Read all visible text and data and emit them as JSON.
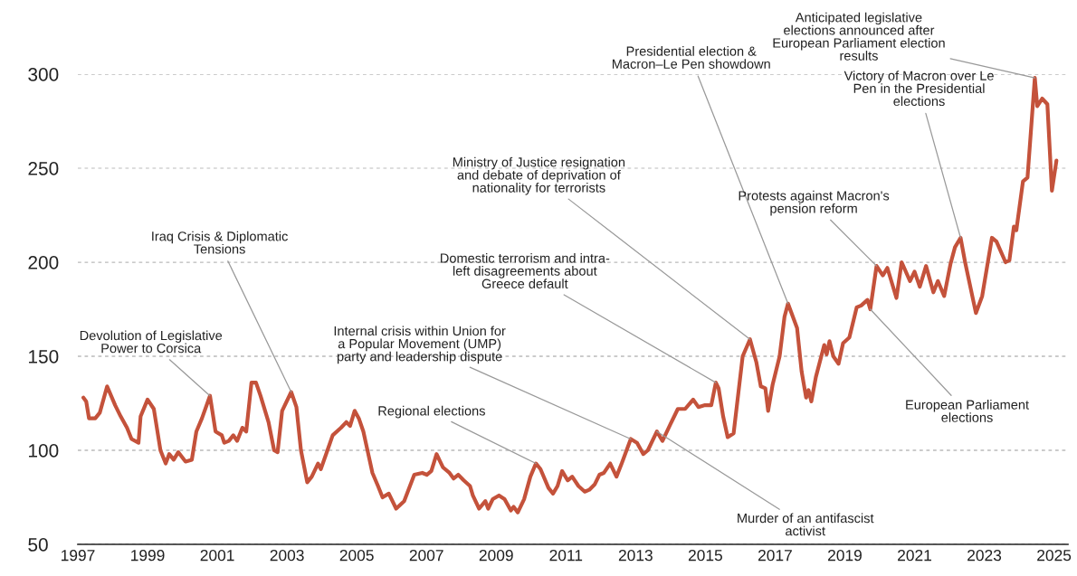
{
  "chart_data": {
    "type": "line",
    "x": [
      1997.16,
      1997.24,
      1997.32,
      1997.5,
      1997.63,
      1997.84,
      1998.07,
      1998.23,
      1998.41,
      1998.54,
      1998.74,
      1998.8,
      1999.0,
      1999.18,
      1999.37,
      1999.52,
      1999.62,
      1999.75,
      1999.88,
      2000.09,
      2000.27,
      2000.4,
      2000.56,
      2000.79,
      2000.95,
      2001.13,
      2001.2,
      2001.33,
      2001.46,
      2001.57,
      2001.72,
      2001.83,
      2001.98,
      2002.11,
      2002.24,
      2002.47,
      2002.63,
      2002.73,
      2002.86,
      2003.12,
      2003.27,
      2003.4,
      2003.58,
      2003.71,
      2003.89,
      2003.97,
      2004.16,
      2004.31,
      2004.55,
      2004.7,
      2004.81,
      2004.94,
      2005.06,
      2005.19,
      2005.32,
      2005.45,
      2005.61,
      2005.74,
      2005.92,
      2006.13,
      2006.36,
      2006.65,
      2006.88,
      2007.01,
      2007.14,
      2007.29,
      2007.47,
      2007.66,
      2007.78,
      2007.91,
      2008.07,
      2008.25,
      2008.33,
      2008.51,
      2008.69,
      2008.77,
      2008.9,
      2009.08,
      2009.24,
      2009.42,
      2009.5,
      2009.62,
      2009.8,
      2009.98,
      2010.14,
      2010.27,
      2010.5,
      2010.63,
      2010.76,
      2010.89,
      2011.05,
      2011.18,
      2011.36,
      2011.54,
      2011.67,
      2011.83,
      2011.96,
      2012.09,
      2012.27,
      2012.45,
      2012.6,
      2012.86,
      2013.04,
      2013.22,
      2013.35,
      2013.61,
      2013.77,
      2014.0,
      2014.21,
      2014.42,
      2014.65,
      2014.8,
      2014.99,
      2015.17,
      2015.3,
      2015.38,
      2015.51,
      2015.64,
      2015.81,
      2016.07,
      2016.28,
      2016.46,
      2016.59,
      2016.72,
      2016.8,
      2016.93,
      2017.13,
      2017.27,
      2017.37,
      2017.63,
      2017.76,
      2017.89,
      2017.96,
      2018.04,
      2018.17,
      2018.41,
      2018.48,
      2018.56,
      2018.67,
      2018.82,
      2018.95,
      2019.13,
      2019.34,
      2019.47,
      2019.65,
      2019.73,
      2019.91,
      2020.09,
      2020.22,
      2020.48,
      2020.63,
      2020.87,
      2021.0,
      2021.15,
      2021.33,
      2021.54,
      2021.67,
      2021.85,
      2022.03,
      2022.16,
      2022.32,
      2022.45,
      2022.76,
      2022.94,
      2023.22,
      2023.35,
      2023.61,
      2023.72,
      2023.85,
      2023.92,
      2024.11,
      2024.24,
      2024.45,
      2024.52,
      2024.66,
      2024.81,
      2024.94,
      2025.07
    ],
    "series": [
      {
        "color": "#c4523b",
        "values": [
          128,
          126,
          117,
          117,
          120,
          134,
          124,
          118,
          112,
          106,
          104,
          118,
          127,
          122,
          100,
          93,
          98,
          95,
          99,
          94,
          95,
          110,
          117,
          129,
          110,
          108,
          104,
          105,
          108,
          105,
          112,
          110,
          136,
          136,
          129,
          115,
          100,
          99,
          121,
          131,
          123,
          100,
          83,
          86,
          93,
          90,
          100,
          108,
          112,
          115,
          113,
          121,
          117,
          110,
          99,
          88,
          81,
          75,
          77,
          69,
          73,
          87,
          88,
          87,
          89,
          98,
          91,
          88,
          85,
          87,
          84,
          81,
          76,
          69,
          73,
          69,
          74,
          76,
          74,
          68,
          70,
          67,
          74,
          86,
          93,
          90,
          80,
          77,
          81,
          89,
          84,
          86,
          81,
          78,
          79,
          82,
          87,
          88,
          93,
          86,
          93,
          106,
          104,
          98,
          100,
          110,
          105,
          114,
          122,
          122,
          127,
          123,
          124,
          124,
          136,
          133,
          118,
          107,
          109,
          150,
          159,
          147,
          134,
          133,
          121,
          135,
          150,
          171,
          178,
          165,
          142,
          128,
          132,
          126,
          139,
          156,
          151,
          158,
          150,
          146,
          157,
          160,
          176,
          177,
          180,
          175,
          198,
          193,
          197,
          181,
          200,
          190,
          195,
          187,
          198,
          184,
          190,
          182,
          199,
          208,
          213,
          200,
          173,
          182,
          213,
          211,
          200,
          201,
          219,
          217,
          243,
          245,
          298,
          283,
          287,
          284,
          238,
          254
        ]
      }
    ],
    "xlim": [
      1997,
      2025.4
    ],
    "xticks": [
      1997,
      1999,
      2001,
      2003,
      2005,
      2007,
      2009,
      2011,
      2013,
      2015,
      2017,
      2019,
      2021,
      2023,
      2025
    ],
    "ylim": [
      50,
      300
    ],
    "yticks": [
      50,
      100,
      150,
      200,
      250,
      300
    ],
    "grid": "y",
    "legend": false,
    "marker": "none",
    "line_style": "solid",
    "annotations": [
      {
        "text": "Devolution of Legislative\nPower to Corsica",
        "x": 2000.79,
        "y": 129
      },
      {
        "text": "Iraq Crisis & Diplomatic\nTensions",
        "x": 2003.12,
        "y": 131
      },
      {
        "text": "Internal crisis within Union for\na Popular Movement (UMP)\nparty and leadership dispute",
        "x": 2012.86,
        "y": 106
      },
      {
        "text": "Regional elections",
        "x": 2010.14,
        "y": 93
      },
      {
        "text": "Murder of an antifascist\nactivist",
        "x": 2013.61,
        "y": 110
      },
      {
        "text": "Domestic terrorism and intra-\nleft disagreements about\nGreece default",
        "x": 2015.3,
        "y": 136
      },
      {
        "text": "Ministry of Justice resignation\nand debate of deprivation of\nnationality for terrorists",
        "x": 2016.28,
        "y": 159
      },
      {
        "text": "Presidential election &\nMacron–Le Pen showdown",
        "x": 2017.37,
        "y": 178
      },
      {
        "text": "Protests against Macron's\npension reform",
        "x": 2019.91,
        "y": 198
      },
      {
        "text": "European Parliament\nelections",
        "x": 2019.73,
        "y": 175
      },
      {
        "text": "Victory of Macron over Le\nPen in the Presidential\nelections",
        "x": 2022.32,
        "y": 213
      },
      {
        "text": "Anticipated legislative\nelections announced after\nEuropean Parliament election\nresults",
        "x": 2024.45,
        "y": 298
      }
    ]
  }
}
